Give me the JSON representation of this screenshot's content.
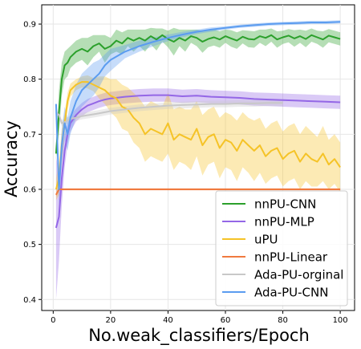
{
  "chart_data": {
    "type": "line",
    "xlabel": "No.weak_classifiers/Epoch",
    "ylabel": "Accuracy",
    "xlim": [
      -4,
      105
    ],
    "ylim": [
      0.38,
      0.935
    ],
    "xticks": [
      0,
      20,
      40,
      60,
      80,
      100
    ],
    "yticks": [
      0.4,
      0.5,
      0.6,
      0.7,
      0.8,
      0.9
    ],
    "grid": true,
    "legend_position": "bottom-right",
    "series": [
      {
        "name": "nnPU-CNN",
        "color": "#2ca02c",
        "x": [
          1,
          2,
          3,
          4,
          5,
          6,
          8,
          10,
          12,
          14,
          16,
          18,
          20,
          22,
          24,
          26,
          28,
          30,
          32,
          34,
          36,
          38,
          40,
          42,
          44,
          46,
          48,
          50,
          52,
          54,
          56,
          58,
          60,
          62,
          64,
          66,
          68,
          70,
          72,
          74,
          76,
          78,
          80,
          82,
          84,
          86,
          88,
          90,
          92,
          94,
          96,
          98,
          100
        ],
        "values": [
          0.665,
          0.74,
          0.8,
          0.825,
          0.83,
          0.84,
          0.85,
          0.855,
          0.85,
          0.86,
          0.865,
          0.855,
          0.86,
          0.87,
          0.865,
          0.875,
          0.87,
          0.875,
          0.87,
          0.878,
          0.872,
          0.88,
          0.873,
          0.868,
          0.875,
          0.87,
          0.878,
          0.875,
          0.868,
          0.873,
          0.876,
          0.872,
          0.878,
          0.874,
          0.87,
          0.877,
          0.873,
          0.872,
          0.878,
          0.875,
          0.88,
          0.872,
          0.876,
          0.879,
          0.874,
          0.878,
          0.873,
          0.88,
          0.876,
          0.872,
          0.879,
          0.876,
          0.873
        ],
        "band": [
          0.01,
          0.04,
          0.03,
          0.025,
          0.025,
          0.02,
          0.02,
          0.02,
          0.025,
          0.02,
          0.015,
          0.025,
          0.015,
          0.02,
          0.02,
          0.015,
          0.02,
          0.015,
          0.02,
          0.015,
          0.02,
          0.012,
          0.015,
          0.025,
          0.015,
          0.02,
          0.012,
          0.015,
          0.02,
          0.015,
          0.015,
          0.015,
          0.012,
          0.015,
          0.015,
          0.012,
          0.015,
          0.015,
          0.012,
          0.015,
          0.012,
          0.015,
          0.012,
          0.012,
          0.015,
          0.012,
          0.015,
          0.012,
          0.012,
          0.015,
          0.012,
          0.012,
          0.012
        ]
      },
      {
        "name": "nnPU-MLP",
        "color": "#9467e6",
        "x": [
          1,
          2,
          3,
          4,
          5,
          6,
          8,
          10,
          12,
          14,
          16,
          18,
          20,
          25,
          30,
          35,
          40,
          45,
          50,
          55,
          60,
          65,
          70,
          75,
          80,
          85,
          90,
          95,
          100
        ],
        "values": [
          0.53,
          0.55,
          0.62,
          0.67,
          0.7,
          0.72,
          0.735,
          0.745,
          0.752,
          0.756,
          0.76,
          0.763,
          0.765,
          0.768,
          0.77,
          0.771,
          0.771,
          0.769,
          0.77,
          0.768,
          0.767,
          0.766,
          0.764,
          0.763,
          0.762,
          0.761,
          0.76,
          0.759,
          0.758
        ],
        "band": [
          0.13,
          0.08,
          0.05,
          0.03,
          0.02,
          0.015,
          0.012,
          0.012,
          0.012,
          0.012,
          0.012,
          0.012,
          0.012,
          0.012,
          0.012,
          0.012,
          0.012,
          0.012,
          0.012,
          0.012,
          0.012,
          0.012,
          0.012,
          0.012,
          0.012,
          0.012,
          0.012,
          0.012,
          0.012
        ]
      },
      {
        "name": "uPU",
        "color": "#f5c327",
        "x": [
          1,
          2,
          3,
          4,
          5,
          6,
          8,
          10,
          12,
          14,
          16,
          18,
          20,
          22,
          24,
          26,
          28,
          30,
          32,
          34,
          36,
          38,
          40,
          42,
          44,
          46,
          48,
          50,
          52,
          54,
          56,
          58,
          60,
          62,
          64,
          66,
          68,
          70,
          72,
          74,
          76,
          78,
          80,
          82,
          84,
          86,
          88,
          90,
          92,
          94,
          96,
          98,
          100
        ],
        "values": [
          0.6,
          0.62,
          0.68,
          0.72,
          0.76,
          0.78,
          0.79,
          0.795,
          0.795,
          0.79,
          0.785,
          0.78,
          0.77,
          0.765,
          0.75,
          0.745,
          0.73,
          0.72,
          0.7,
          0.71,
          0.705,
          0.7,
          0.72,
          0.69,
          0.7,
          0.695,
          0.69,
          0.71,
          0.68,
          0.695,
          0.7,
          0.675,
          0.69,
          0.685,
          0.67,
          0.69,
          0.68,
          0.67,
          0.68,
          0.66,
          0.67,
          0.675,
          0.655,
          0.665,
          0.67,
          0.65,
          0.665,
          0.655,
          0.65,
          0.665,
          0.645,
          0.655,
          0.64
        ],
        "band": [
          0.02,
          0.03,
          0.03,
          0.02,
          0.015,
          0.012,
          0.01,
          0.01,
          0.012,
          0.012,
          0.02,
          0.025,
          0.03,
          0.035,
          0.04,
          0.04,
          0.045,
          0.045,
          0.05,
          0.05,
          0.05,
          0.05,
          0.055,
          0.055,
          0.05,
          0.05,
          0.055,
          0.05,
          0.055,
          0.05,
          0.05,
          0.055,
          0.05,
          0.05,
          0.055,
          0.05,
          0.05,
          0.055,
          0.05,
          0.05,
          0.05,
          0.05,
          0.05,
          0.05,
          0.05,
          0.05,
          0.05,
          0.05,
          0.045,
          0.05,
          0.045,
          0.045,
          0.045
        ]
      },
      {
        "name": "nnPU-Linear",
        "color": "#f07a3f",
        "x": [
          1,
          2,
          3,
          100
        ],
        "values": [
          0.59,
          0.6,
          0.6,
          0.6
        ],
        "band": [
          0.003,
          0.002,
          0.002,
          0.002
        ]
      },
      {
        "name": "Ada-PU-orginal",
        "color": "#c8c8c8",
        "x": [
          1,
          2,
          3,
          4,
          5,
          6,
          8,
          10,
          15,
          20,
          25,
          30,
          35,
          40,
          45,
          50,
          55,
          60,
          65,
          70,
          75,
          80
        ],
        "values": [
          0.74,
          0.735,
          0.72,
          0.722,
          0.725,
          0.728,
          0.73,
          0.733,
          0.737,
          0.742,
          0.745,
          0.748,
          0.75,
          0.752,
          0.753,
          0.754,
          0.755,
          0.755,
          0.756,
          0.756,
          0.757,
          0.757
        ],
        "band": [
          0.006,
          0.006,
          0.006,
          0.006,
          0.006,
          0.006,
          0.006,
          0.006,
          0.006,
          0.006,
          0.006,
          0.006,
          0.006,
          0.006,
          0.006,
          0.006,
          0.006,
          0.006,
          0.006,
          0.006,
          0.006,
          0.006
        ]
      },
      {
        "name": "Ada-PU-CNN",
        "color": "#5b9cf0",
        "x": [
          1,
          2,
          3,
          4,
          5,
          6,
          8,
          10,
          12,
          14,
          16,
          18,
          20,
          25,
          30,
          35,
          40,
          45,
          50,
          55,
          60,
          65,
          70,
          75,
          80,
          85,
          90,
          95,
          100
        ],
        "values": [
          0.755,
          0.6,
          0.68,
          0.72,
          0.7,
          0.73,
          0.76,
          0.78,
          0.79,
          0.8,
          0.81,
          0.825,
          0.835,
          0.85,
          0.86,
          0.868,
          0.875,
          0.881,
          0.886,
          0.89,
          0.893,
          0.896,
          0.898,
          0.9,
          0.901,
          0.902,
          0.903,
          0.903,
          0.904
        ],
        "band": [
          0.01,
          0.03,
          0.03,
          0.03,
          0.03,
          0.03,
          0.03,
          0.03,
          0.03,
          0.03,
          0.025,
          0.02,
          0.02,
          0.012,
          0.01,
          0.008,
          0.006,
          0.005,
          0.004,
          0.004,
          0.003,
          0.003,
          0.003,
          0.003,
          0.003,
          0.003,
          0.003,
          0.003,
          0.003
        ]
      }
    ]
  }
}
